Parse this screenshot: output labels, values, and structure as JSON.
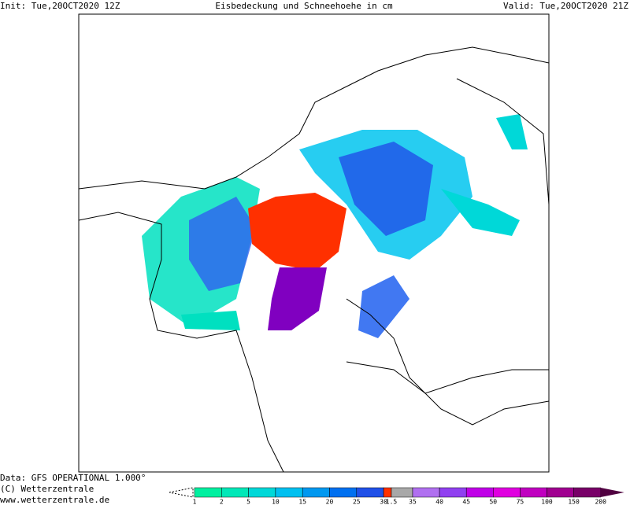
{
  "header": {
    "init": "Init: Tue,20OCT2020 12Z",
    "title": "Eisbedeckung und Schneehoehe in cm",
    "valid": "Valid: Tue,20OCT2020 21Z"
  },
  "footer": {
    "data": "Data: GFS OPERATIONAL 1.000°",
    "copyright": "(C) Wetterzentrale",
    "url": "www.wetterzentrale.de"
  },
  "legend": {
    "labels": [
      1,
      2,
      5,
      10,
      15,
      20,
      25,
      30,
      1.5,
      35,
      40,
      45,
      50,
      75,
      100,
      150,
      200
    ],
    "colors": [
      "#00f0a0",
      "#00e8b8",
      "#00d8d8",
      "#00c0f0",
      "#0098f0",
      "#0070f0",
      "#2050e8",
      "#ff3000",
      "#a8a8a8",
      "#b070f0",
      "#9040f0",
      "#c000e8",
      "#e000e0",
      "#c000c0",
      "#a00090",
      "#780068",
      "#500040"
    ]
  }
}
